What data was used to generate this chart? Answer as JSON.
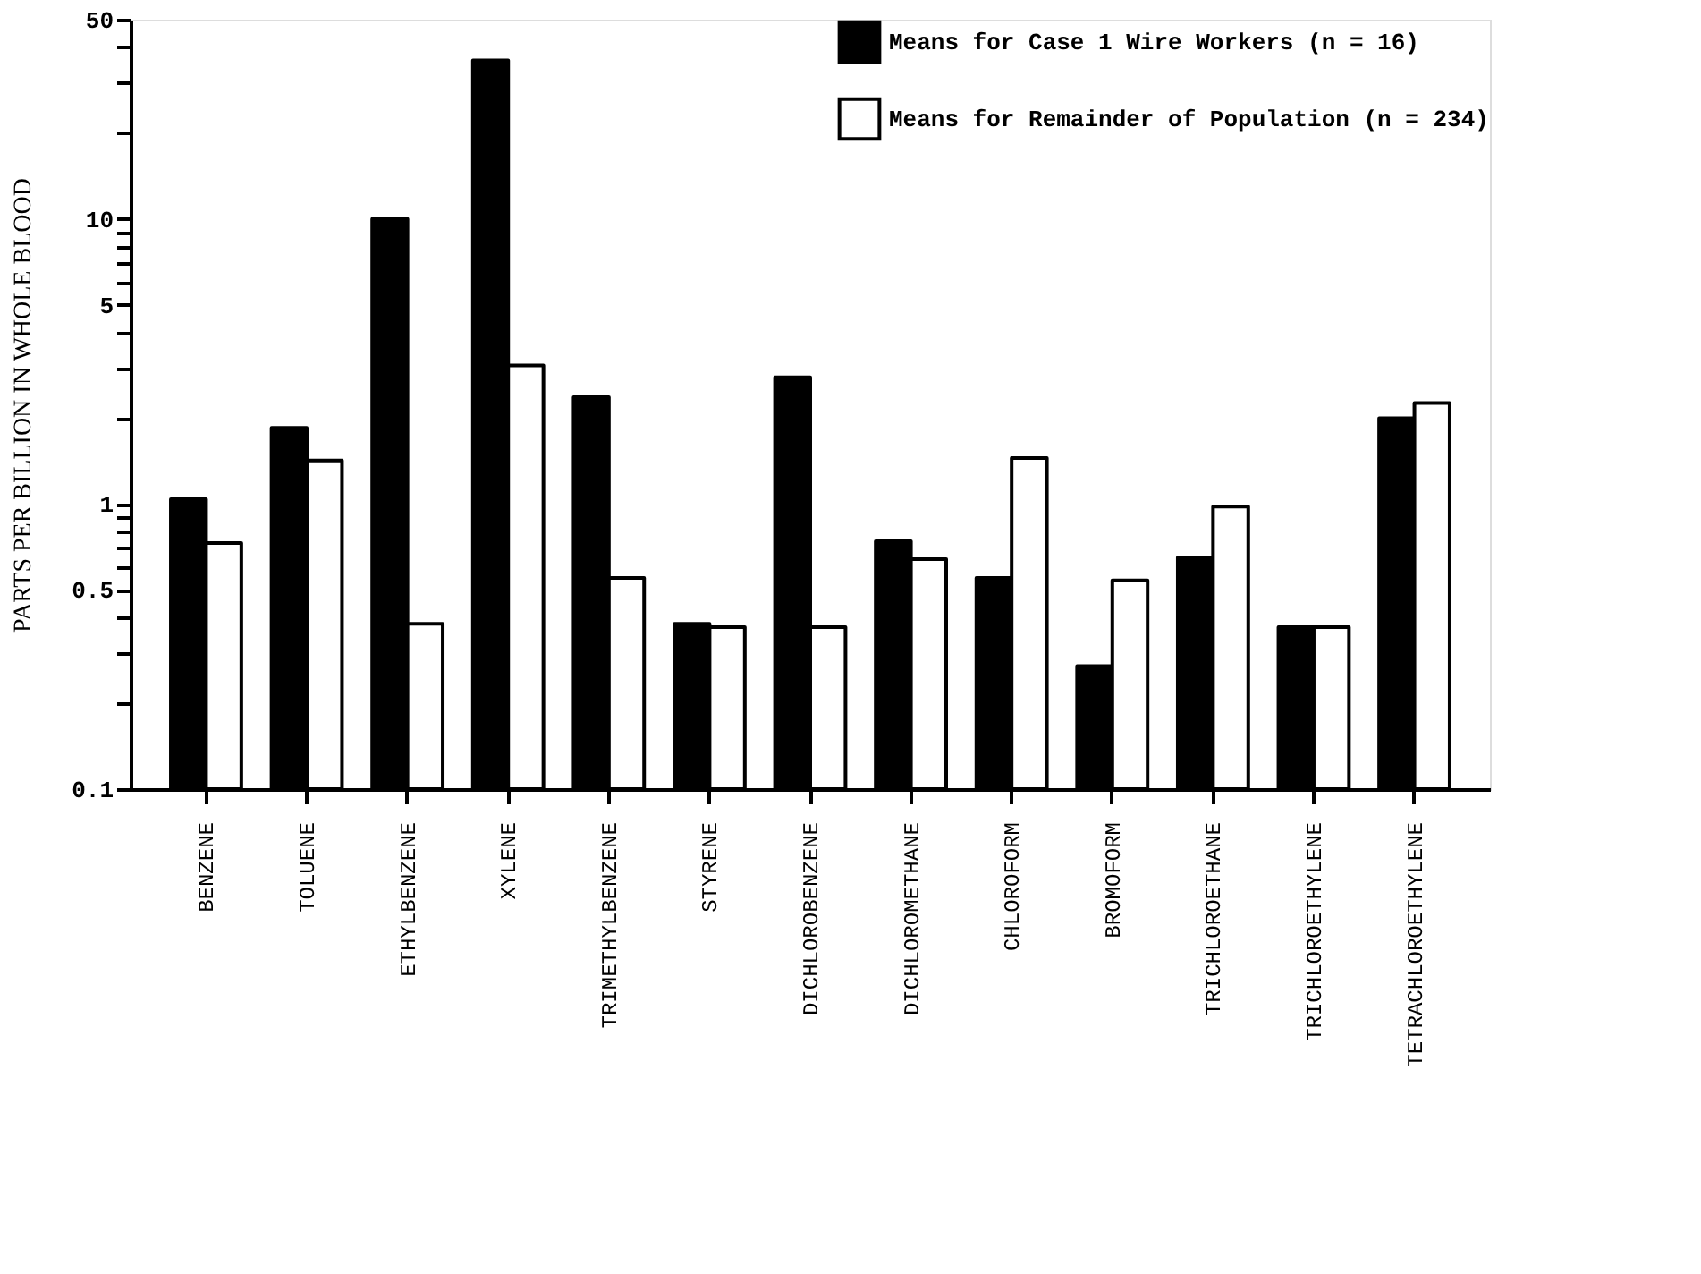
{
  "chart_data": {
    "type": "bar",
    "ylabel": "PARTS PER BILLION IN WHOLE BLOOD",
    "categories": [
      "BENZENE",
      "TOLUENE",
      "ETHYLBENZENE",
      "XYLENE",
      "TRIMETHYLBENZENE",
      "STYRENE",
      "DICHLOROBENZENE",
      "DICHLOROMETHANE",
      "CHLOROFORM",
      "BROMOFORM",
      "TRICHLOROETHANE",
      "TRICHLOROETHYLENE",
      "TETRACHLOROETHYLENE"
    ],
    "series": [
      {
        "name": "Means for Case 1 Wire Workers (n = 16)",
        "color": "#000000",
        "values": [
          1.04,
          1.85,
          10,
          36,
          2.37,
          0.38,
          2.78,
          0.74,
          0.55,
          0.27,
          0.65,
          0.37,
          2.0
        ]
      },
      {
        "name": "Means for Remainder of Population (n = 234)",
        "color": "#ffffff",
        "values": [
          0.73,
          1.42,
          0.38,
          3.06,
          0.55,
          0.37,
          0.37,
          0.64,
          1.45,
          0.54,
          0.98,
          0.37,
          2.26
        ]
      }
    ],
    "log": "y",
    "ylim": [
      0.1,
      50
    ],
    "yticks": [
      0.1,
      {
        "value": 0.2,
        "label": null
      },
      {
        "value": 0.3,
        "label": null
      },
      {
        "value": 0.4,
        "label": null
      },
      0.5,
      {
        "value": 0.6,
        "label": null
      },
      {
        "value": 0.7,
        "label": null
      },
      {
        "value": 0.8,
        "label": null
      },
      {
        "value": 0.9,
        "label": null
      },
      1,
      {
        "value": 2,
        "label": null
      },
      {
        "value": 3,
        "label": null
      },
      {
        "value": 4,
        "label": null
      },
      5,
      {
        "value": 6,
        "label": null
      },
      {
        "value": 7,
        "label": null
      },
      {
        "value": 8,
        "label": null
      },
      {
        "value": 9,
        "label": null
      },
      10,
      {
        "value": 20,
        "label": null
      },
      {
        "value": 30,
        "label": null
      },
      {
        "value": 40,
        "label": null
      },
      50
    ],
    "grid": false,
    "legend": "top right"
  }
}
